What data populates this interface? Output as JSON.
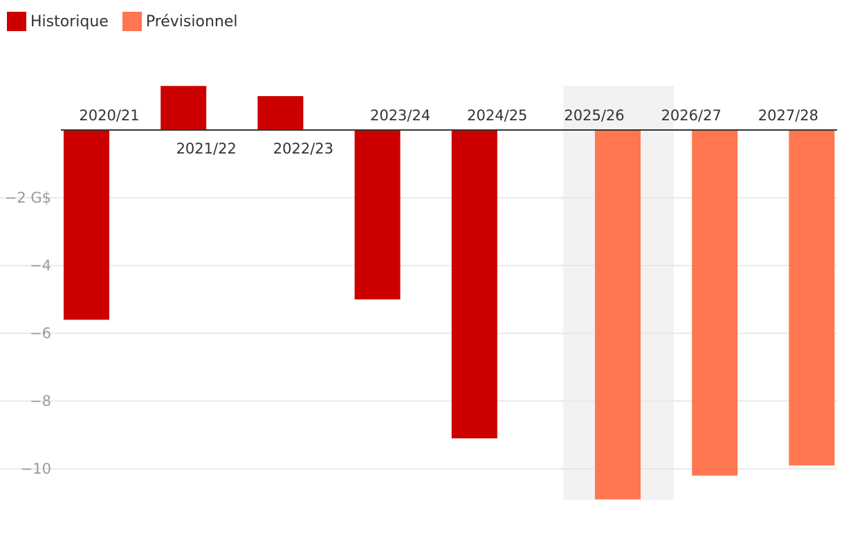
{
  "legend": {
    "historical_label": "Historique",
    "forecast_label": "Prévisionnel"
  },
  "colors": {
    "historical": "#cc0000",
    "forecast": "#ff7650",
    "highlight": "#f2f2f2",
    "grid": "#e4e4e4",
    "zero_line": "#333333"
  },
  "chart_data": {
    "type": "bar",
    "title": "",
    "xlabel": "",
    "ylabel": "",
    "unit": "G$",
    "ylim": [
      -10.9,
      1.3
    ],
    "yticks": [
      {
        "value": -2,
        "label": "−2 G$"
      },
      {
        "value": -4,
        "label": "−4"
      },
      {
        "value": -6,
        "label": "−6"
      },
      {
        "value": -8,
        "label": "−8"
      },
      {
        "value": -10,
        "label": "−10"
      }
    ],
    "categories": [
      "2020/21",
      "2021/22",
      "2022/23",
      "2023/24",
      "2024/25",
      "2025/26",
      "2026/27",
      "2027/28"
    ],
    "series": [
      {
        "name": "Historique",
        "values": [
          -5.6,
          1.3,
          1.0,
          -5.0,
          -9.1,
          null,
          null,
          null
        ]
      },
      {
        "name": "Prévisionnel",
        "values": [
          null,
          null,
          null,
          null,
          null,
          -10.9,
          -10.2,
          -9.9
        ]
      }
    ],
    "highlighted_category": "2025/26"
  }
}
